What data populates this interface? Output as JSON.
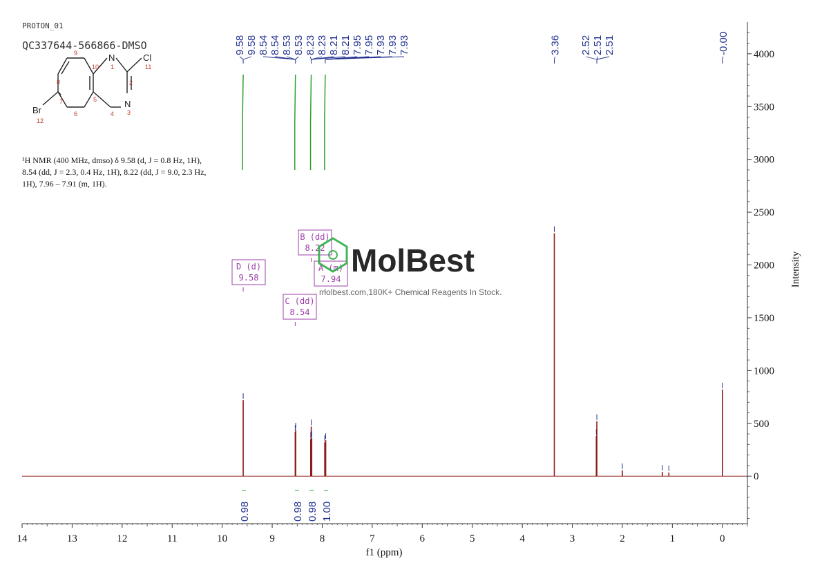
{
  "header": {
    "experiment": "PROTON_01",
    "sample_id": "QC337644-566866-DMSO"
  },
  "structure": {
    "atoms": [
      "N",
      "Cl",
      "N",
      "Br"
    ],
    "numbers": [
      "1",
      "2",
      "3",
      "4",
      "5",
      "6",
      "7",
      "8",
      "9",
      "10",
      "11",
      "12"
    ]
  },
  "nmr_text": {
    "line1": "¹H NMR (400 MHz, dmso) δ 9.58 (d, J = 0.8 Hz, 1H),",
    "line2": "8.54 (dd, J = 2.3, 0.4 Hz, 1H), 8.22 (dd, J = 9.0, 2.3 Hz,",
    "line3": "1H), 7.96 – 7.91 (m, 1H)."
  },
  "watermark": {
    "brand": "MolBest",
    "tagline": "molbest.com,180K+ Chemical Reagents In Stock."
  },
  "colors": {
    "spectrum": "#8b1a1a",
    "peak_labels": "#1f2f8f",
    "integral_curve": "#2ea02e",
    "multiplet_box": "#9b3fa8",
    "watermark": "#2fae47"
  },
  "chart_data": {
    "type": "line",
    "xlabel": "f1 (ppm)",
    "ylabel": "Intensity",
    "x_reversed": true,
    "xlim": [
      14.0,
      -0.5
    ],
    "ylim": [
      -450,
      4300
    ],
    "x_ticks": [
      "14",
      "13",
      "12",
      "11",
      "10",
      "9",
      "8",
      "7",
      "6",
      "5",
      "4",
      "3",
      "2",
      "1",
      "0"
    ],
    "y_ticks": [
      "0",
      "500",
      "1000",
      "1500",
      "2000",
      "2500",
      "3000",
      "3500",
      "4000"
    ],
    "peaks": [
      {
        "x": 9.58,
        "y": 720
      },
      {
        "x": 8.54,
        "y": 420
      },
      {
        "x": 8.53,
        "y": 440
      },
      {
        "x": 8.23,
        "y": 350
      },
      {
        "x": 8.22,
        "y": 470
      },
      {
        "x": 8.21,
        "y": 360
      },
      {
        "x": 7.95,
        "y": 320
      },
      {
        "x": 7.93,
        "y": 340
      },
      {
        "x": 3.36,
        "y": 2300
      },
      {
        "x": 2.52,
        "y": 380
      },
      {
        "x": 2.51,
        "y": 520
      },
      {
        "x": 2.0,
        "y": 55
      },
      {
        "x": 1.2,
        "y": 40
      },
      {
        "x": 1.07,
        "y": 35
      },
      {
        "x": 0.0,
        "y": 820
      }
    ],
    "peak_labels": [
      {
        "group": [
          {
            "text": "9.58",
            "ppm": 9.58
          },
          {
            "text": "9.58",
            "ppm": 9.58
          }
        ],
        "anchor_ppm": 9.58
      },
      {
        "group": [
          {
            "text": "8.54",
            "ppm": 8.54
          },
          {
            "text": "8.54",
            "ppm": 8.54
          },
          {
            "text": "8.53",
            "ppm": 8.53
          },
          {
            "text": "8.53",
            "ppm": 8.53
          }
        ],
        "anchor_ppm": 8.535
      },
      {
        "group": [
          {
            "text": "8.23",
            "ppm": 8.23
          },
          {
            "text": "8.23",
            "ppm": 8.23
          },
          {
            "text": "8.21",
            "ppm": 8.21
          },
          {
            "text": "8.21",
            "ppm": 8.21
          }
        ],
        "anchor_ppm": 8.22
      },
      {
        "group": [
          {
            "text": "7.95",
            "ppm": 7.95
          },
          {
            "text": "7.95",
            "ppm": 7.95
          },
          {
            "text": "7.93",
            "ppm": 7.93
          },
          {
            "text": "7.93",
            "ppm": 7.93
          },
          {
            "text": "7.93",
            "ppm": 7.93
          }
        ],
        "anchor_ppm": 7.94
      },
      {
        "group": [
          {
            "text": "3.36",
            "ppm": 3.36
          }
        ],
        "anchor_ppm": 3.36
      },
      {
        "group": [
          {
            "text": "2.52",
            "ppm": 2.52
          },
          {
            "text": "2.51",
            "ppm": 2.51
          },
          {
            "text": "2.51",
            "ppm": 2.51
          }
        ],
        "anchor_ppm": 2.51
      },
      {
        "group": [
          {
            "text": "-0.00",
            "ppm": 0.0
          }
        ],
        "anchor_ppm": 0.0
      }
    ],
    "integrals": [
      {
        "ppm": 9.58,
        "value": "0.98"
      },
      {
        "ppm": 8.54,
        "value": "0.98"
      },
      {
        "ppm": 8.22,
        "value": "0.98"
      },
      {
        "ppm": 7.94,
        "value": "1.00"
      }
    ],
    "multiplets": [
      {
        "label": "D (d)",
        "shift": "9.58",
        "ppm": 9.58
      },
      {
        "label": "C (dd)",
        "shift": "8.54",
        "ppm": 8.54
      },
      {
        "label": "B (dd)",
        "shift": "8.22",
        "ppm": 8.22
      },
      {
        "label": "A (m)",
        "shift": "7.94",
        "ppm": 7.94
      }
    ]
  }
}
